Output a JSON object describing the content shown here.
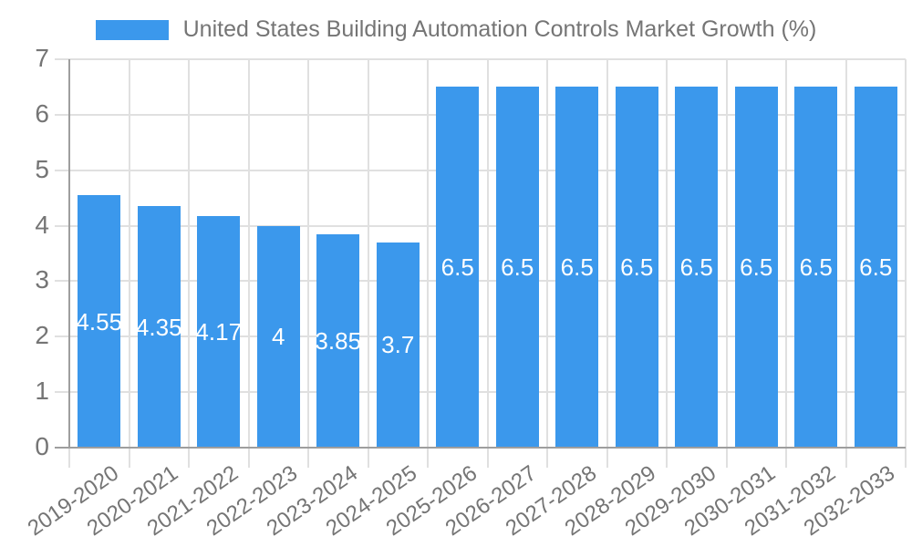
{
  "chart_data": {
    "type": "bar",
    "title": "United States Building Automation Controls Market Growth (%)",
    "categories": [
      "2019-2020",
      "2020-2021",
      "2021-2022",
      "2022-2023",
      "2023-2024",
      "2024-2025",
      "2025-2026",
      "2026-2027",
      "2027-2028",
      "2028-2029",
      "2029-2030",
      "2030-2031",
      "2031-2032",
      "2032-2033"
    ],
    "values": [
      4.55,
      4.35,
      4.17,
      4,
      3.85,
      3.7,
      6.5,
      6.5,
      6.5,
      6.5,
      6.5,
      6.5,
      6.5,
      6.5
    ],
    "yticks": [
      0,
      1,
      2,
      3,
      4,
      5,
      6,
      7
    ],
    "ylim": [
      0,
      7
    ],
    "xlabel": "",
    "ylabel": "",
    "grid": true,
    "legend_position": "top",
    "bar_color": "#3B98EC",
    "grid_color": "#e0e0e0",
    "axis_color": "#9e9e9e",
    "tick_label_color": "#757575",
    "title_color": "#757575",
    "data_label_color": "#ffffff"
  }
}
